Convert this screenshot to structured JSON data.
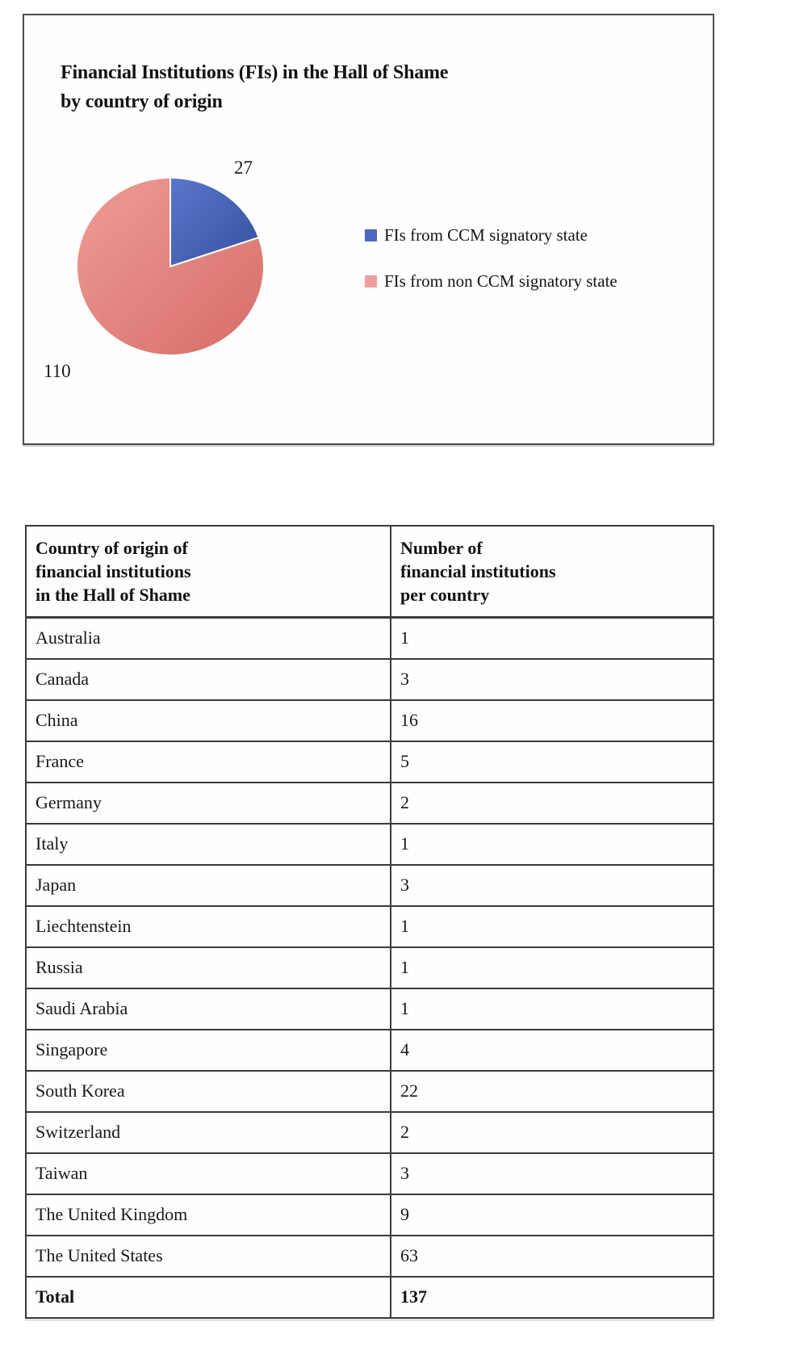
{
  "chart_panel": {
    "title": "Financial Institutions (FIs) in the Hall of Shame\nby country of origin"
  },
  "chart_data": {
    "type": "pie",
    "title": "Financial Institutions (FIs) in the Hall of Shame by country of origin",
    "start_angle": "12-oclock",
    "direction": "clockwise",
    "legend_position": "right",
    "total": 137,
    "slices": [
      {
        "label": "FIs from CCM signatory state",
        "value": 27,
        "data_label": "27",
        "color": "#5a77cc",
        "color_dark": "#35509f",
        "legend_color": "#4c66bd"
      },
      {
        "label": "FIs from non CCM signatory state",
        "value": 110,
        "data_label": "110",
        "color": "#ef9c96",
        "color_dark": "#d66d67",
        "legend_color": "#ee9e9c"
      }
    ]
  },
  "table": {
    "col1_header": "Country of origin of\nfinancial institutions\nin the Hall of Shame",
    "col2_header": "Number of\nfinancial institutions\nper country",
    "rows": [
      {
        "country": "Australia",
        "value": "1"
      },
      {
        "country": "Canada",
        "value": "3"
      },
      {
        "country": "China",
        "value": "16"
      },
      {
        "country": "France",
        "value": "5"
      },
      {
        "country": "Germany",
        "value": "2"
      },
      {
        "country": "Italy",
        "value": "1"
      },
      {
        "country": "Japan",
        "value": "3"
      },
      {
        "country": "Liechtenstein",
        "value": "1"
      },
      {
        "country": "Russia",
        "value": "1"
      },
      {
        "country": "Saudi Arabia",
        "value": "1"
      },
      {
        "country": "Singapore",
        "value": "4"
      },
      {
        "country": "South Korea",
        "value": "22"
      },
      {
        "country": "Switzerland",
        "value": "2"
      },
      {
        "country": "Taiwan",
        "value": "3"
      },
      {
        "country": "The United Kingdom",
        "value": "9"
      },
      {
        "country": "The United States",
        "value": "63"
      }
    ],
    "total_row": {
      "country": "Total",
      "value": "137"
    }
  }
}
